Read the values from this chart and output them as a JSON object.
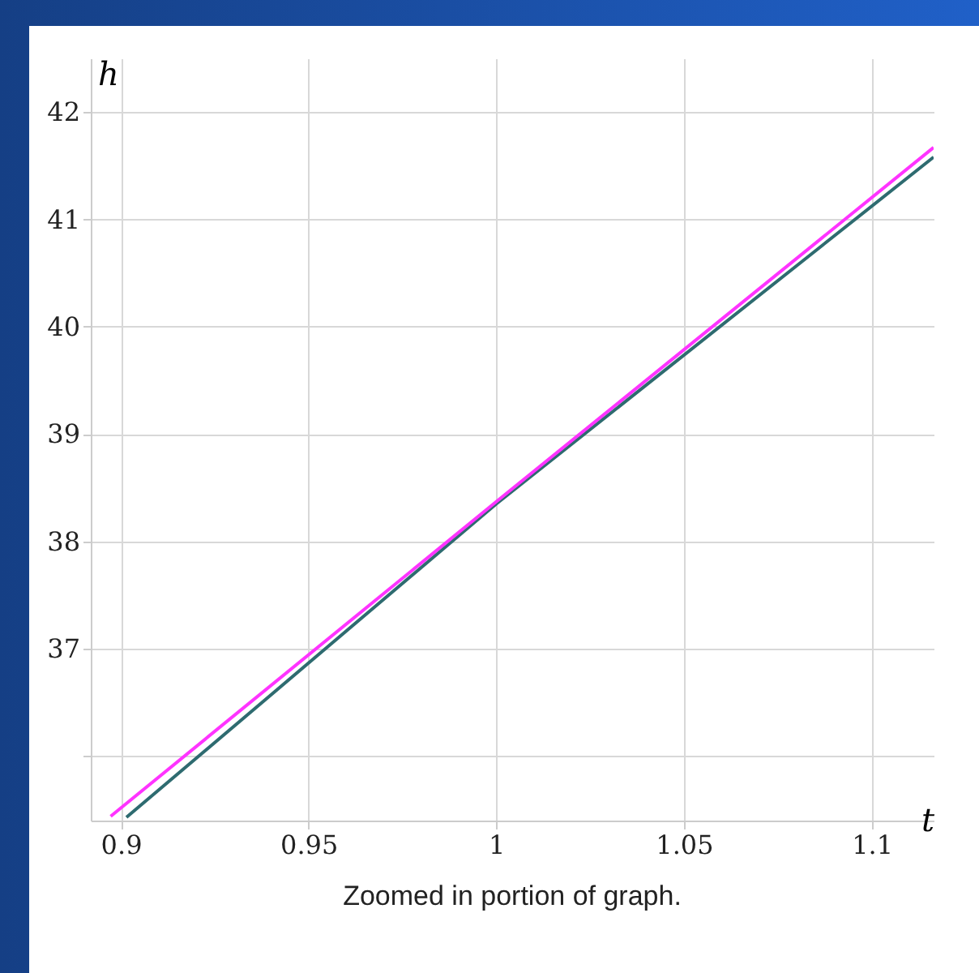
{
  "chart_data": {
    "type": "line",
    "xlabel": "t",
    "ylabel": "h",
    "annotations": [
      "Zoomed in portion of graph."
    ],
    "xlim": [
      0.892,
      1.1165
    ],
    "ylim": [
      35.4,
      42.5
    ],
    "xticks": [
      0.9,
      0.95,
      1,
      1.05,
      1.1
    ],
    "yticks": [
      {
        "value": 36,
        "label": null
      },
      37,
      38,
      39,
      40,
      41,
      42
    ],
    "grid": true,
    "series": [
      {
        "color": "#2e6b70",
        "x": [
          0.9015,
          1,
          1.1165
        ],
        "values": [
          35.43,
          38.35,
          41.58
        ]
      },
      {
        "color": "#ff33ff",
        "x": [
          0.8973,
          1,
          1.1165
        ],
        "values": [
          35.44,
          38.37,
          41.67
        ]
      }
    ]
  }
}
